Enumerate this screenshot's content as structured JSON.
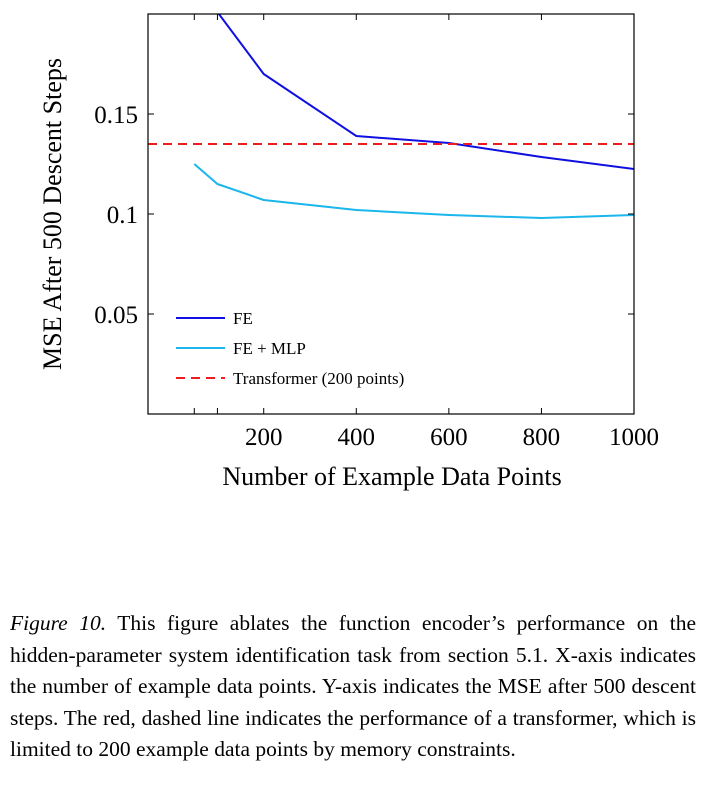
{
  "chart_data": {
    "type": "line",
    "title": "",
    "xlabel": "Number of Example Data Points",
    "ylabel": "MSE After 500 Descent Steps",
    "xlim": [
      -50,
      1000
    ],
    "ylim": [
      0,
      0.2
    ],
    "x_ticks": [
      200,
      400,
      600,
      800,
      1000
    ],
    "y_ticks": [
      0.05,
      0.1,
      0.15
    ],
    "x_minor_ticks": [
      50,
      100
    ],
    "grid": false,
    "legend_position": "bottom-left",
    "series": [
      {
        "name": "FE",
        "color": "#1010e0",
        "style": "solid",
        "x": [
          100,
          200,
          400,
          600,
          800,
          1000
        ],
        "y": [
          0.201,
          0.17,
          0.139,
          0.1355,
          0.1285,
          0.1225
        ]
      },
      {
        "name": "FE + MLP",
        "color": "#1ab6ec",
        "style": "solid",
        "x": [
          50,
          100,
          200,
          400,
          600,
          800,
          1000
        ],
        "y": [
          0.125,
          0.115,
          0.107,
          0.102,
          0.0995,
          0.098,
          0.0995
        ]
      },
      {
        "name": "Transformer (200 points)",
        "color": "#ee1c1c",
        "style": "dashed",
        "x": [
          -50,
          1000
        ],
        "y": [
          0.135,
          0.135
        ]
      }
    ]
  },
  "caption": {
    "label": "Figure 10.",
    "text": " This figure ablates the function encoder’s performance on the hidden-parameter system identification task from section 5.1. X-axis indicates the number of example data points. Y-axis indicates the MSE after 500 descent steps. The red, dashed line indicates the performance of a transformer, which is limited to 200 example data points by memory constraints."
  }
}
